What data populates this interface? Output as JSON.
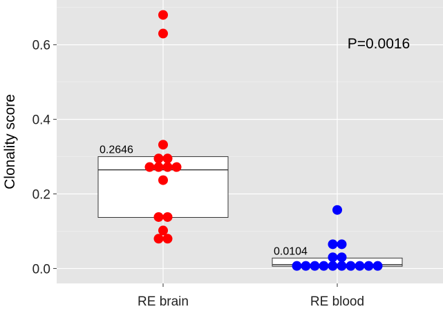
{
  "chart_data": {
    "type": "scatter",
    "subtype": "dot-plot-with-box",
    "title": "",
    "xlabel": "",
    "ylabel": "Clonality score",
    "ylim": [
      -0.04,
      0.72
    ],
    "yticks": [
      0.0,
      0.2,
      0.4,
      0.6
    ],
    "ytick_labels": [
      "0.0",
      "0.2",
      "0.4",
      "0.6"
    ],
    "categories": [
      "RE brain",
      "RE blood"
    ],
    "grid": true,
    "panel_background": "#e5e5e5",
    "annotation": "P=0.0016",
    "series": [
      {
        "category": "RE brain",
        "color": "#ff0000",
        "box": {
          "q1": 0.137,
          "median": 0.2646,
          "q3": 0.3
        },
        "median_label": "0.2646",
        "points": [
          0.68,
          0.63,
          0.332,
          0.295,
          0.295,
          0.272,
          0.272,
          0.272,
          0.272,
          0.237,
          0.138,
          0.138,
          0.102,
          0.08,
          0.08
        ]
      },
      {
        "category": "RE blood",
        "color": "#0000ff",
        "box": {
          "q1": 0.006,
          "median": 0.0104,
          "q3": 0.028
        },
        "median_label": "0.0104",
        "points": [
          0.157,
          0.065,
          0.065,
          0.03,
          0.03,
          0.007,
          0.007,
          0.007,
          0.007,
          0.007,
          0.007,
          0.007,
          0.007,
          0.007,
          0.007
        ]
      }
    ]
  }
}
